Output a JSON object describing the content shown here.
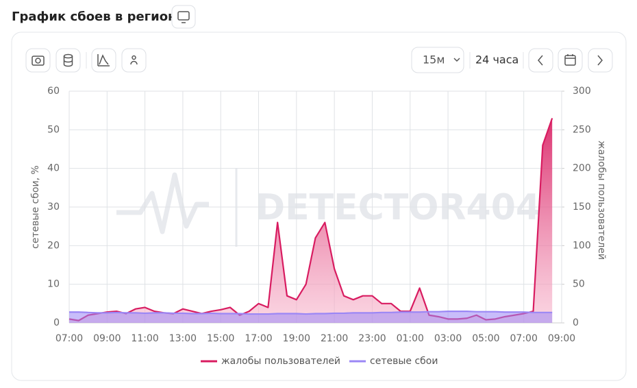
{
  "header": {
    "title": "График сбоев в регионе"
  },
  "toolbar": {
    "interval": "15м",
    "range": "24 часа"
  },
  "chart_data": {
    "type": "line",
    "watermark": "DETECTOR404",
    "y_label": "сетевые сбои, %",
    "y2_label": "жалобы пользователей",
    "categories": [
      "07:00",
      null,
      null,
      null,
      "09:00",
      null,
      null,
      null,
      "11:00",
      null,
      null,
      null,
      "13:00",
      null,
      null,
      null,
      "15:00",
      null,
      null,
      null,
      "17:00",
      null,
      null,
      null,
      "19:00",
      null,
      null,
      null,
      "21:00",
      null,
      null,
      null,
      "23:00",
      null,
      null,
      null,
      "01:00",
      null,
      null,
      null,
      "03:00",
      null,
      null,
      null,
      "05:00",
      null,
      null,
      null,
      "07:00",
      null,
      null,
      null,
      "09:00"
    ],
    "ylim": [
      0,
      60
    ],
    "yticks": [
      0,
      10,
      20,
      30,
      40,
      50,
      60
    ],
    "y2lim": [
      0,
      300
    ],
    "y2ticks": [
      0,
      50,
      100,
      150,
      200,
      250,
      300
    ],
    "grid": true,
    "series": [
      {
        "name": "жалобы пользователей",
        "color": "#d81b60",
        "axis": "y2",
        "fill": true,
        "values": [
          5,
          3,
          10,
          12,
          14,
          15,
          12,
          18,
          20,
          15,
          13,
          12,
          18,
          15,
          12,
          15,
          17,
          20,
          10,
          15,
          25,
          20,
          130,
          35,
          30,
          50,
          110,
          130,
          70,
          35,
          30,
          35,
          35,
          25,
          25,
          15,
          15,
          45,
          10,
          8,
          5,
          5,
          6,
          10,
          4,
          5,
          8,
          10,
          12,
          15,
          230,
          265,
          null
        ]
      },
      {
        "name": "сетевые сбои",
        "color": "#9b87f5",
        "axis": "y",
        "fill": true,
        "values": [
          2.8,
          2.8,
          2.7,
          2.6,
          2.6,
          2.7,
          2.6,
          2.6,
          2.5,
          2.6,
          2.6,
          2.5,
          2.5,
          2.4,
          2.4,
          2.5,
          2.4,
          2.4,
          2.4,
          2.3,
          2.3,
          2.3,
          2.4,
          2.4,
          2.4,
          2.3,
          2.4,
          2.4,
          2.5,
          2.5,
          2.6,
          2.6,
          2.6,
          2.7,
          2.7,
          2.8,
          2.8,
          2.8,
          2.9,
          2.9,
          3,
          3,
          3,
          2.9,
          2.9,
          2.9,
          2.8,
          2.8,
          2.8,
          2.7,
          2.7,
          2.7,
          null
        ]
      }
    ]
  }
}
